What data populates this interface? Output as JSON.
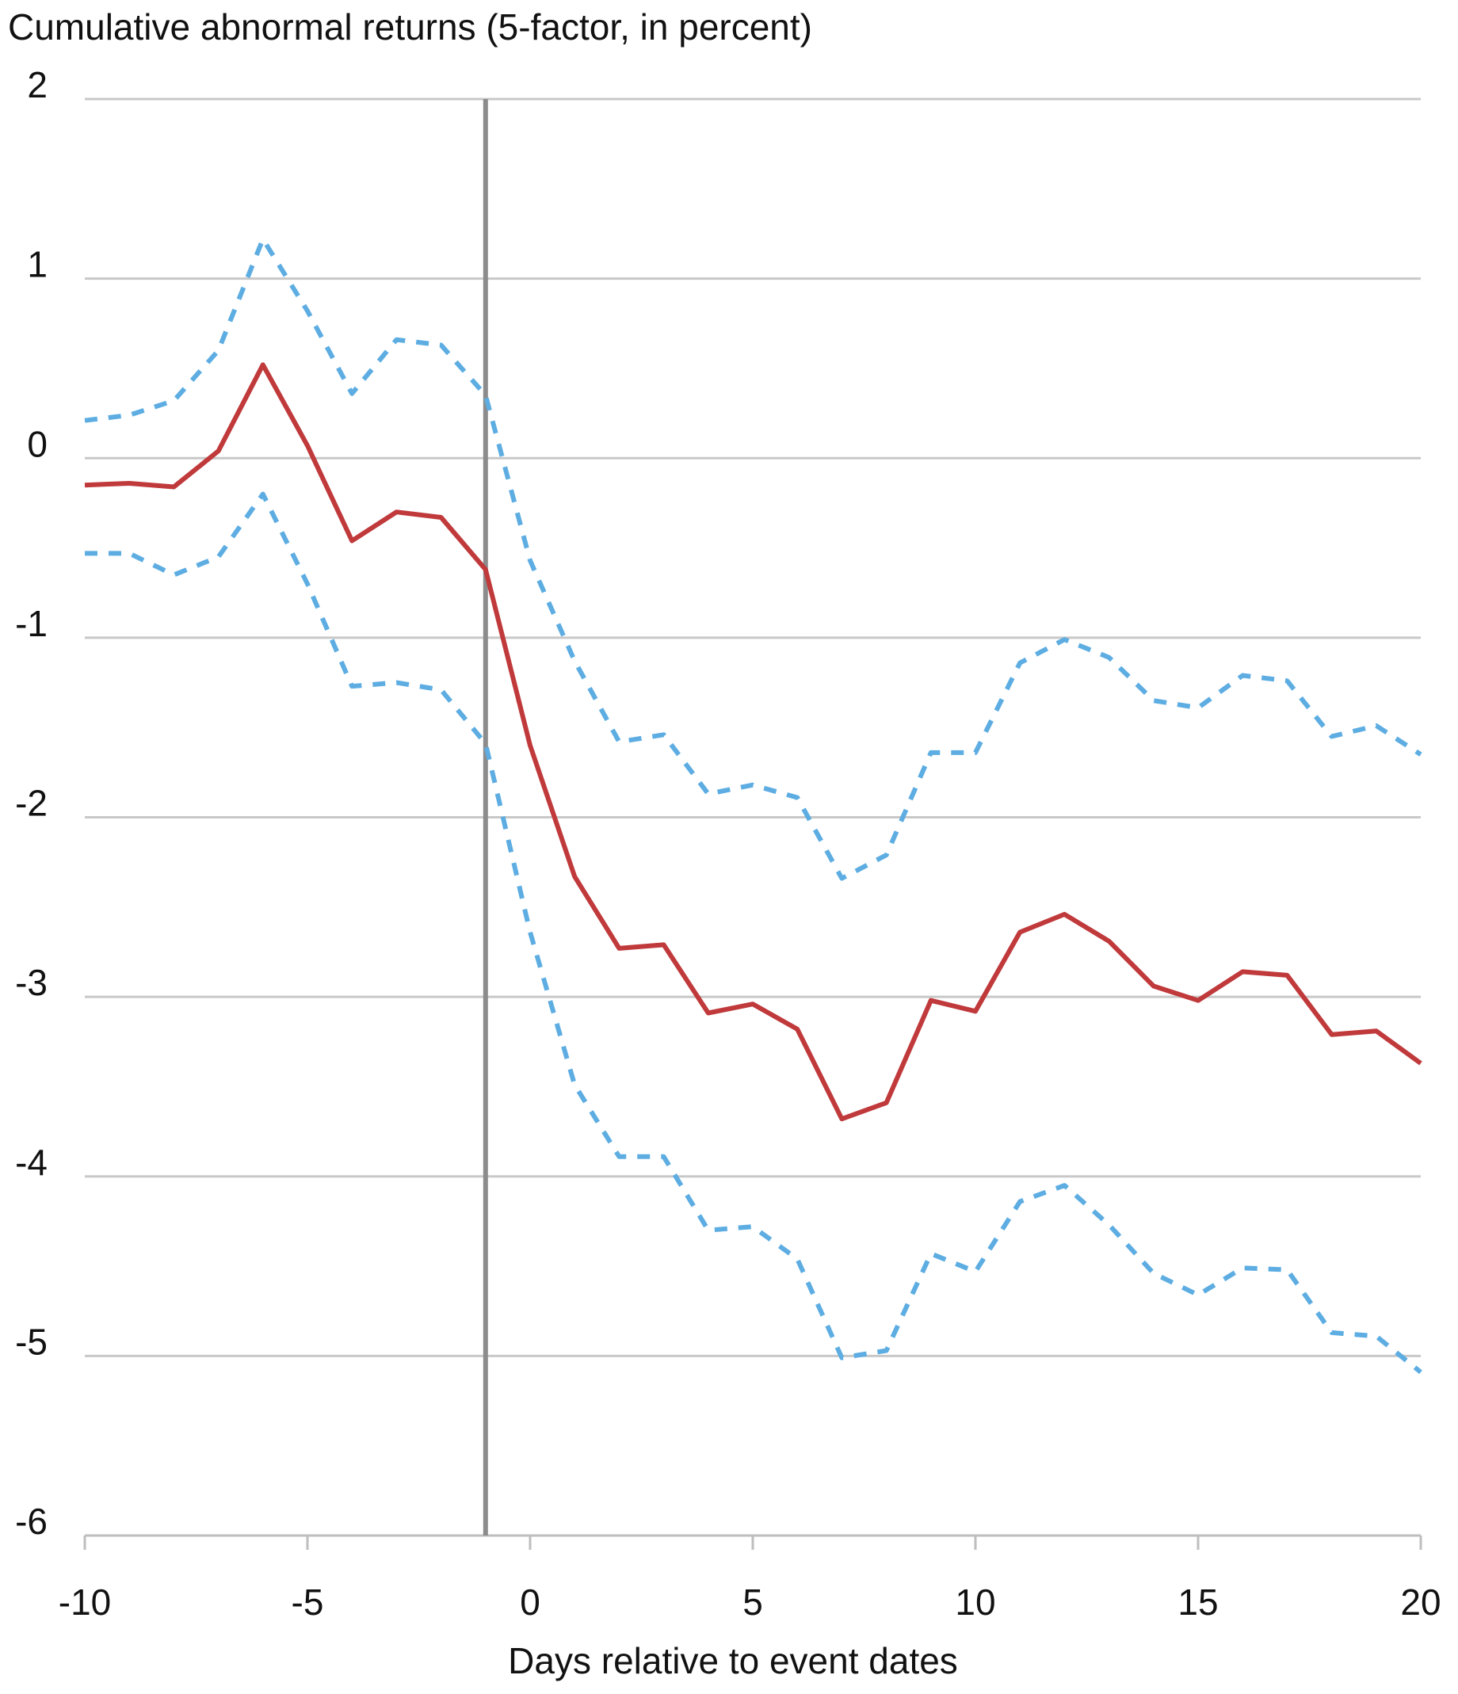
{
  "chart_data": {
    "type": "line",
    "title": "Cumulative abnormal returns (5-factor, in percent)",
    "xlabel": "Days relative to event dates",
    "ylabel": "",
    "xlim": [
      -10,
      20
    ],
    "ylim": [
      -6,
      2
    ],
    "x_ticks": [
      -10,
      -5,
      0,
      5,
      10,
      15,
      20
    ],
    "y_ticks": [
      2,
      1,
      0,
      -1,
      -2,
      -3,
      -4,
      -5,
      -6
    ],
    "grid": "horizontal",
    "legend": "none",
    "event_line_x": -1,
    "x": [
      -10,
      -9,
      -8,
      -7,
      -6,
      -5,
      -4,
      -3,
      -2,
      -1,
      0,
      1,
      2,
      3,
      4,
      5,
      6,
      7,
      8,
      9,
      10,
      11,
      12,
      13,
      14,
      15,
      16,
      17,
      18,
      19,
      20
    ],
    "series": [
      {
        "role": "estimate",
        "style": "solid",
        "color": "#C0393B",
        "values": [
          -0.15,
          -0.14,
          -0.16,
          0.04,
          0.52,
          0.07,
          -0.46,
          -0.3,
          -0.33,
          -0.62,
          -1.6,
          -2.33,
          -2.73,
          -2.71,
          -3.09,
          -3.04,
          -3.18,
          -3.68,
          -3.59,
          -3.02,
          -3.08,
          -2.64,
          -2.54,
          -2.69,
          -2.94,
          -3.02,
          -2.86,
          -2.88,
          -3.21,
          -3.19,
          -3.37
        ]
      },
      {
        "role": "upper band",
        "style": "dashed",
        "color": "#5DADE2",
        "values": [
          0.21,
          0.24,
          0.32,
          0.6,
          1.22,
          0.82,
          0.36,
          0.66,
          0.63,
          0.35,
          -0.57,
          -1.13,
          -1.58,
          -1.54,
          -1.87,
          -1.82,
          -1.89,
          -2.34,
          -2.21,
          -1.64,
          -1.64,
          -1.14,
          -1.01,
          -1.11,
          -1.35,
          -1.39,
          -1.21,
          -1.24,
          -1.55,
          -1.49,
          -1.65
        ]
      },
      {
        "role": "lower band",
        "style": "dashed",
        "color": "#5DADE2",
        "values": [
          -0.53,
          -0.53,
          -0.65,
          -0.55,
          -0.2,
          -0.7,
          -1.27,
          -1.25,
          -1.29,
          -1.59,
          -2.64,
          -3.49,
          -3.89,
          -3.89,
          -4.3,
          -4.28,
          -4.46,
          -5.01,
          -4.97,
          -4.43,
          -4.53,
          -4.14,
          -4.05,
          -4.27,
          -4.54,
          -4.66,
          -4.51,
          -4.52,
          -4.87,
          -4.89,
          -5.09
        ]
      }
    ]
  }
}
